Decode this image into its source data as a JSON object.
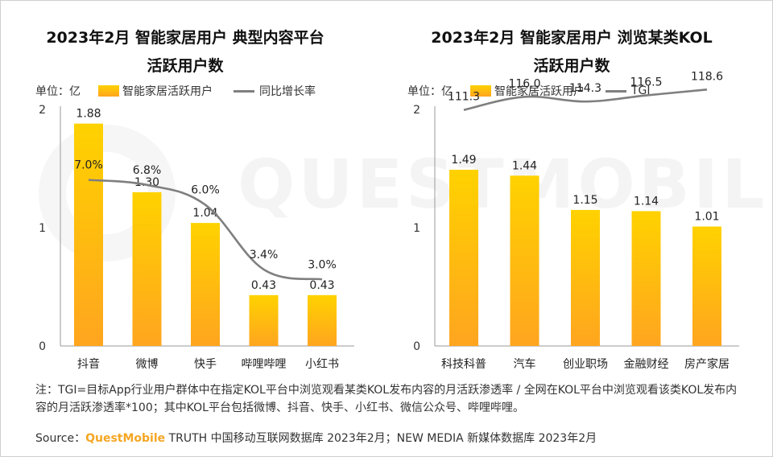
{
  "note": "注：TGI=目标App行业用户群体中在指定KOL平台中浏览观看某类KOL发布内容的月活跃渗透率 / 全网在KOL平台中浏览观看该类KOL发布内容的月活跃渗透率*100；其中KOL平台包括微博、抖音、快手、小红书、微信公众号、哔哩哔哩。",
  "source": {
    "prefix": "Source：",
    "brand": "QuestMobile",
    "suffix": " TRUTH 中国移动互联网数据库 2023年2月；NEW MEDIA 新媒体数据库 2023年2月"
  },
  "watermark": "QUESTMOBILE",
  "colors": {
    "bar_top": "#ffd200",
    "bar_bottom": "#ffa51f",
    "line": "#7f7f7f",
    "brand": "#f5a623"
  },
  "chart_data": [
    {
      "type": "bar",
      "title_line1": "2023年2月 智能家居用户 典型内容平台",
      "title_line2": "活跃用户数",
      "unit": "单位：亿",
      "bar_legend": "智能家居活跃用户",
      "line_legend": "同比增长率",
      "categories": [
        "抖音",
        "微博",
        "快手",
        "哔哩哔哩",
        "小红书"
      ],
      "values": [
        1.88,
        1.3,
        1.04,
        0.43,
        0.43
      ],
      "value_labels": [
        "1.88",
        "1.30",
        "1.04",
        "0.43",
        "0.43"
      ],
      "line_values": [
        7.0,
        6.8,
        6.0,
        3.4,
        3.0
      ],
      "line_labels": [
        "7.0%",
        "6.8%",
        "6.0%",
        "3.4%",
        "3.0%"
      ],
      "line_range": [
        0,
        11
      ],
      "yticks": [
        "0",
        "1",
        "2"
      ],
      "ylim": [
        0,
        2
      ]
    },
    {
      "type": "bar",
      "title_line1": "2023年2月 智能家居用户 浏览某类KOL",
      "title_line2": "活跃用户数",
      "unit": "单位：亿",
      "bar_legend": "智能家居活跃用户",
      "line_legend": "TGI",
      "categories": [
        "科技科普",
        "汽车",
        "创业职场",
        "金融财经",
        "房产家居"
      ],
      "values": [
        1.49,
        1.44,
        1.15,
        1.14,
        1.01
      ],
      "value_labels": [
        "1.49",
        "1.44",
        "1.15",
        "1.14",
        "1.01"
      ],
      "line_values": [
        111.3,
        116.0,
        114.3,
        116.5,
        118.6
      ],
      "line_labels": [
        "111.3",
        "116.0",
        "114.3",
        "116.5",
        "118.6"
      ],
      "line_range": [
        0,
        140
      ],
      "yticks": [
        "0",
        "1",
        "2"
      ],
      "ylim": [
        0,
        2
      ]
    }
  ]
}
